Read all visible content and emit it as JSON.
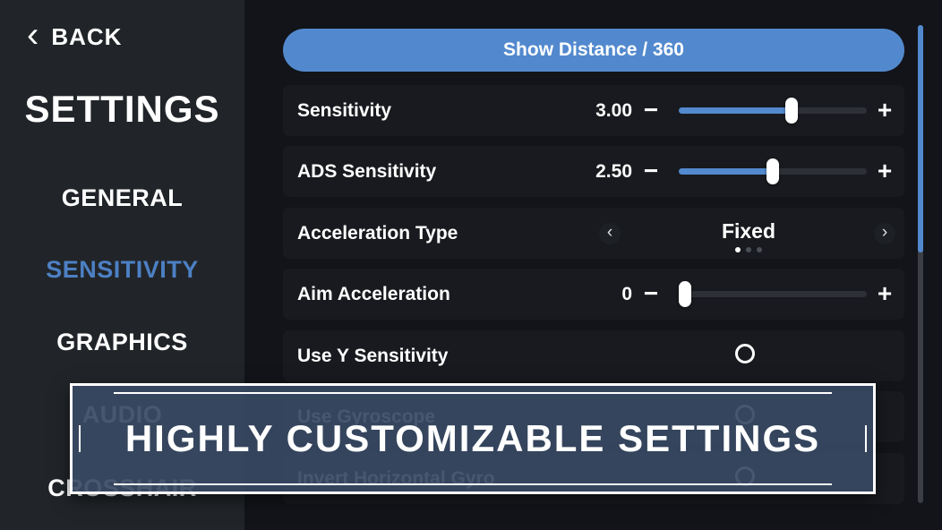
{
  "sidebar": {
    "back_label": "BACK",
    "title": "SETTINGS",
    "items": [
      {
        "label": "GENERAL",
        "active": false
      },
      {
        "label": "SENSITIVITY",
        "active": true
      },
      {
        "label": "GRAPHICS",
        "active": false
      },
      {
        "label": "AUDIO",
        "active": false
      },
      {
        "label": "CROSSHAIR",
        "active": false
      }
    ]
  },
  "main": {
    "show_distance_button": "Show Distance / 360",
    "rows": [
      {
        "type": "slider",
        "label": "Sensitivity",
        "value": "3.00",
        "fill_pct": 60
      },
      {
        "type": "slider",
        "label": "ADS Sensitivity",
        "value": "2.50",
        "fill_pct": 50
      },
      {
        "type": "carousel",
        "label": "Acceleration Type",
        "value": "Fixed",
        "dots": 3,
        "active_dot": 0
      },
      {
        "type": "slider",
        "label": "Aim Acceleration",
        "value": "0",
        "fill_pct": 0
      },
      {
        "type": "toggle",
        "label": "Use Y Sensitivity",
        "checked": false
      },
      {
        "type": "toggle",
        "label": "Use Gyroscope",
        "checked": false
      },
      {
        "type": "toggle",
        "label": "Invert Horizontal Gyro",
        "checked": false
      }
    ]
  },
  "banner": {
    "text": "HIGHLY CUSTOMIZABLE SETTINGS"
  },
  "icons": {
    "back_chevron": "‹",
    "minus": "−",
    "plus": "+",
    "prev_chevron": "‹",
    "next_chevron": "›"
  },
  "colors": {
    "accent_blue": "#5289ce",
    "active_item_blue": "#4d80c4",
    "sidebar_bg": "#212529",
    "main_bg": "#121419",
    "row_bg": "#181a1f",
    "banner_bg": "#384963"
  }
}
